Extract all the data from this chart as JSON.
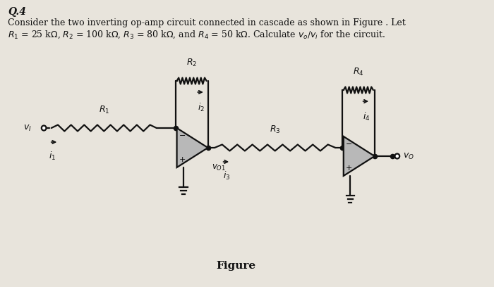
{
  "bg_color": "#e8e4dc",
  "title_text": "Q.4",
  "line1": "Consider the two inverting op-amp circuit connected in cascade as shown in Figure . Let",
  "line2": "$R_1$ = 25 kΩ, $R_2$ = 100 kΩ, $R_3$ = 80 kΩ, and $R_4$ = 50 kΩ. Calculate $v_o/v_i$ for the circuit.",
  "figure_label": "Figure",
  "text_color": "#111111",
  "circuit_color": "#111111",
  "opamp_fill": "#b8b8b8"
}
